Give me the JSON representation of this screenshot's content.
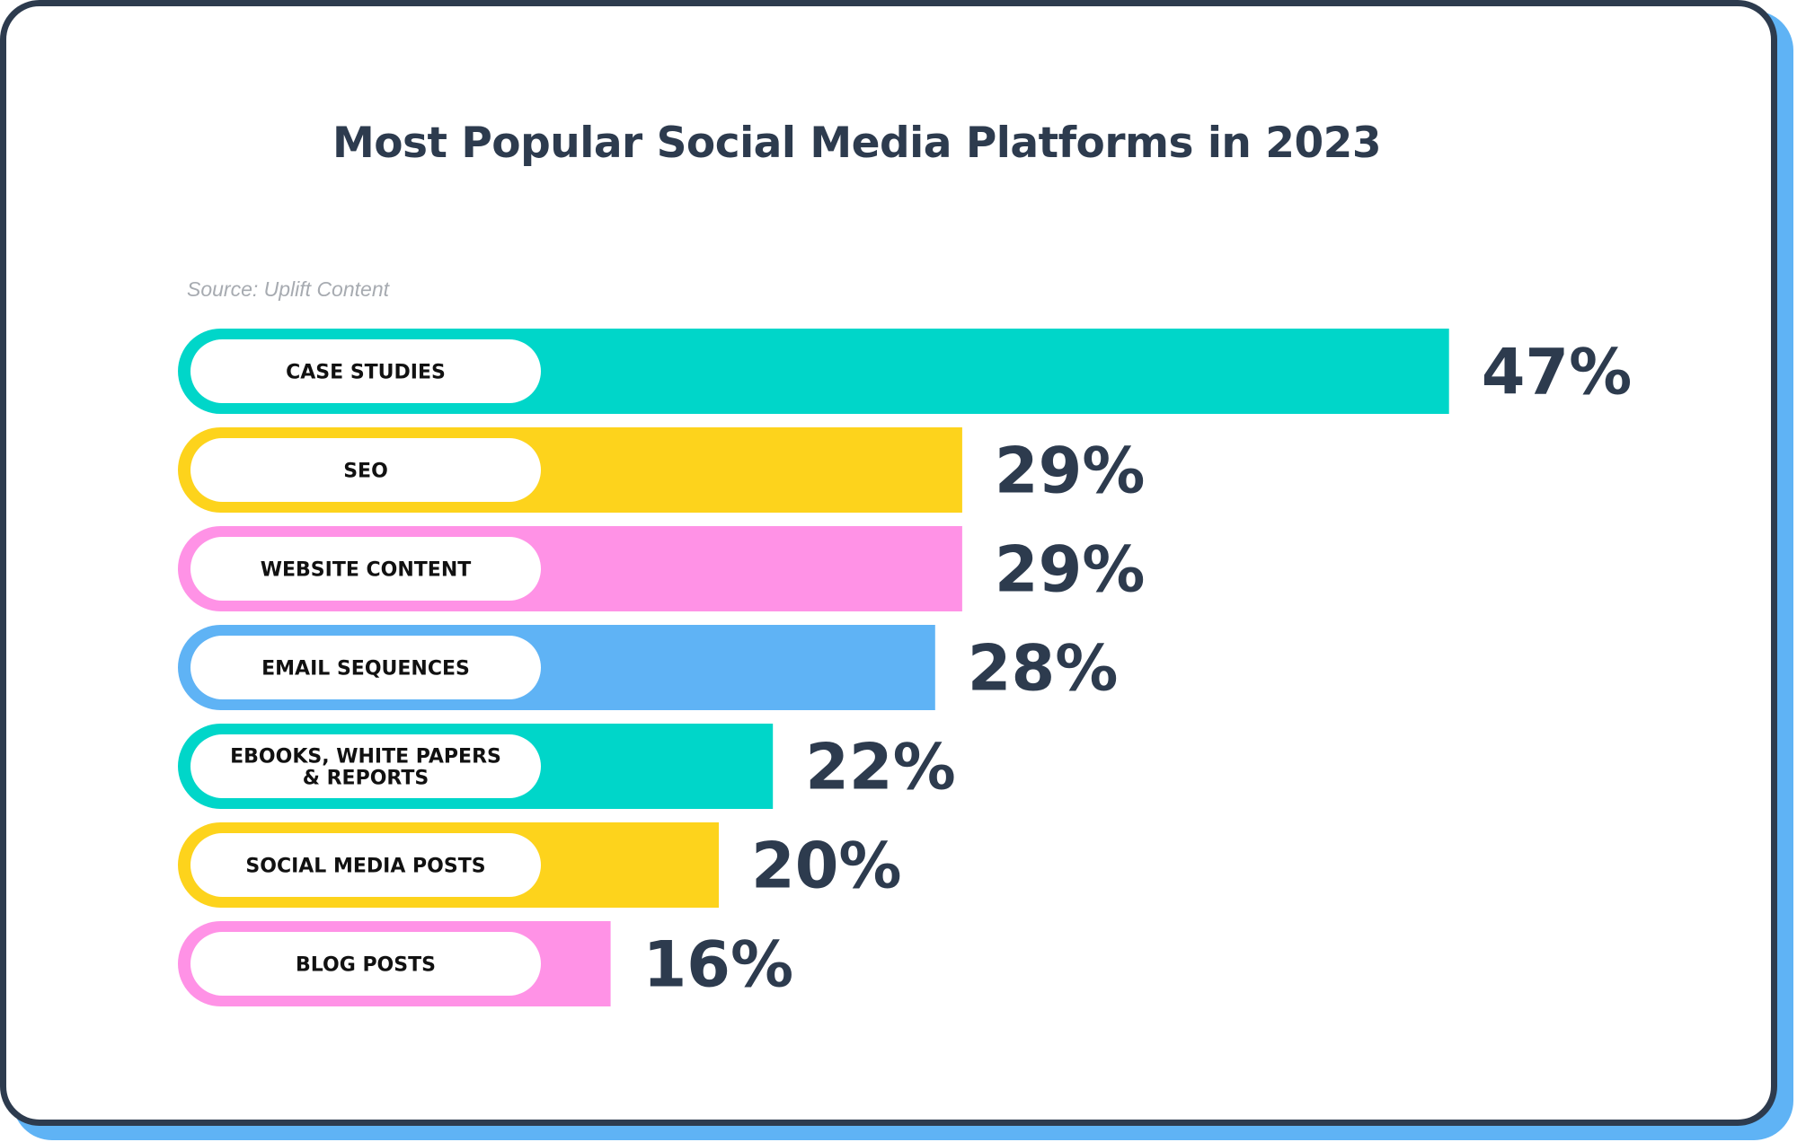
{
  "title": "Most Popular Social Media Platforms in 2023",
  "source": "Source: Uplift Content",
  "colors": {
    "frame": "#2d3b4e",
    "frame_shadow": "#5fb3f5",
    "teal": "#00d6c9",
    "yellow": "#fdd31c",
    "pink": "#ff92e6",
    "blue": "#5fb3f5",
    "text_dark": "#2d3b4e"
  },
  "chart_data": {
    "type": "bar",
    "orientation": "horizontal",
    "title": "Most Popular Social Media Platforms in 2023",
    "source": "Source: Uplift Content",
    "categories": [
      "CASE STUDIES",
      "SEO",
      "WEBSITE CONTENT",
      "EMAIL SEQUENCES",
      "EBOOKS, WHITE PAPERS & REPORTS",
      "SOCIAL MEDIA POSTS",
      "BLOG POSTS"
    ],
    "values": [
      47,
      29,
      29,
      28,
      22,
      20,
      16
    ],
    "value_labels": [
      "47%",
      "29%",
      "29%",
      "28%",
      "22%",
      "20%",
      "16%"
    ],
    "bar_colors": [
      "#00d6c9",
      "#fdd31c",
      "#ff92e6",
      "#5fb3f5",
      "#00d6c9",
      "#fdd31c",
      "#ff92e6"
    ],
    "unit": "%",
    "grid": false,
    "legend": "none"
  }
}
